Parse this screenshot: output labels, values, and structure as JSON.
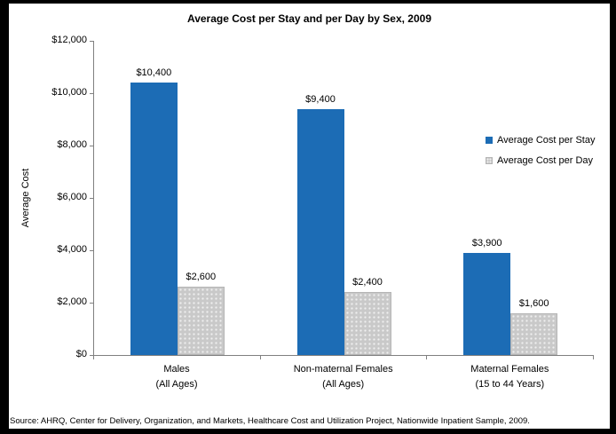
{
  "chart_data": {
    "type": "bar",
    "title": "Average Cost per Stay and per Day by Sex, 2009",
    "ylabel": "Average Cost",
    "xlabel": "",
    "categories": [
      {
        "line1": "Males",
        "line2": "(All Ages)"
      },
      {
        "line1": "Non-maternal Females",
        "line2": "(All Ages)"
      },
      {
        "line1": "Maternal Females",
        "line2": "(15 to 44 Years)"
      }
    ],
    "series": [
      {
        "name": "Average Cost per Stay",
        "values": [
          10400,
          9400,
          3900
        ],
        "labels": [
          "$10,400",
          "$9,400",
          "$3,900"
        ],
        "color": "#1C6CB5",
        "pattern": "solid"
      },
      {
        "name": "Average Cost per Day",
        "values": [
          2600,
          2400,
          1600
        ],
        "labels": [
          "$2,600",
          "$2,400",
          "$1,600"
        ],
        "color": "#C9C9C9",
        "pattern": "dotted"
      }
    ],
    "ylim": [
      0,
      12000
    ],
    "y_tick_interval": 2000,
    "y_tick_labels": [
      "$0",
      "$2,000",
      "$4,000",
      "$6,000",
      "$8,000",
      "$10,000",
      "$12,000"
    ],
    "legend_position": "right",
    "grid": false
  },
  "source_note": "Source: AHRQ, Center for Delivery, Organization, and Markets, Healthcare Cost and Utilization Project, Nationwide Inpatient Sample, 2009.",
  "colors": {
    "bar_stay": "#1C6CB5",
    "bar_day": "#C9C9C9",
    "bar_day_dots": "#EFEFEF",
    "axis": "#808080",
    "frame_border": "#000000",
    "text": "#000000"
  }
}
